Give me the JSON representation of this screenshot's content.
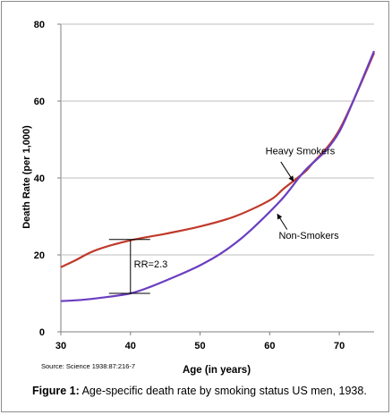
{
  "chart_data": {
    "type": "line",
    "ylabel": "Death Rate (per 1,000)",
    "xlabel": "Age (in years)",
    "xlim": [
      30,
      75
    ],
    "ylim": [
      0,
      80
    ],
    "x_ticks": [
      30,
      40,
      50,
      60,
      70
    ],
    "y_ticks": [
      0,
      20,
      40,
      60,
      80
    ],
    "grid": "horizontal",
    "series": [
      {
        "name": "Heavy Smokers",
        "color": "#c0392b",
        "points": [
          [
            30,
            16.8
          ],
          [
            32,
            18.5
          ],
          [
            35,
            21.2
          ],
          [
            40,
            23.8
          ],
          [
            45,
            25.5
          ],
          [
            50,
            27.4
          ],
          [
            55,
            30
          ],
          [
            60,
            34.2
          ],
          [
            62,
            37.2
          ],
          [
            65,
            41.5
          ],
          [
            66,
            43.5
          ],
          [
            70,
            52.5
          ],
          [
            75,
            72.5
          ]
        ]
      },
      {
        "name": "Non-Smokers",
        "color": "#6a3ec0",
        "points": [
          [
            30,
            8
          ],
          [
            33,
            8.3
          ],
          [
            36,
            8.9
          ],
          [
            40,
            10
          ],
          [
            43,
            11.8
          ],
          [
            47,
            14.8
          ],
          [
            50,
            17.3
          ],
          [
            53,
            20.4
          ],
          [
            56,
            24.4
          ],
          [
            59,
            29.4
          ],
          [
            62,
            35
          ],
          [
            65,
            41.8
          ],
          [
            68,
            47
          ],
          [
            70,
            52
          ],
          [
            72,
            60
          ],
          [
            75,
            73
          ]
        ]
      }
    ],
    "annotations": [
      {
        "text": "Heavy Smokers",
        "x": 59.4,
        "y": 46.2
      },
      {
        "text": "Non-Smokers",
        "x": 61.3,
        "y": 24.2
      },
      {
        "text": "RR=2.3",
        "x": 40.5,
        "y": 16.7
      }
    ],
    "rr_bracket": {
      "x": 40,
      "y_low": 10,
      "y_high": 24
    },
    "source": "Source: Science 1938:87:216-7"
  },
  "caption": {
    "label": "Figure 1:",
    "text": " Age-specific death rate by smoking status US men, 1938."
  }
}
